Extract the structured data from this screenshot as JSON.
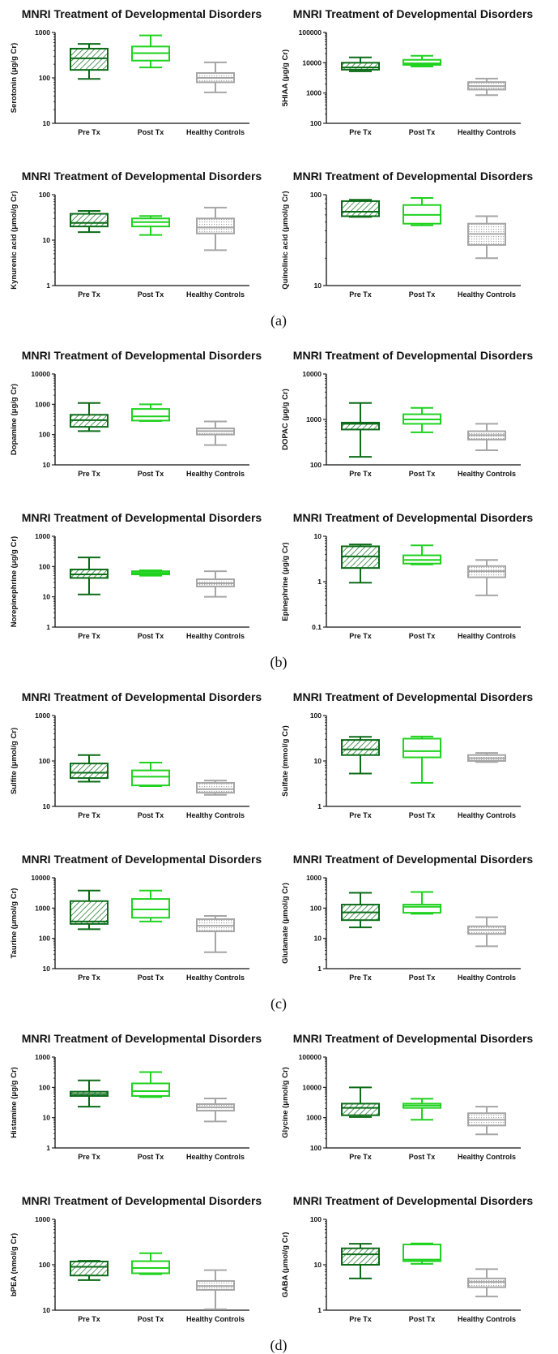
{
  "colors": {
    "pre": "#0b6b18",
    "post": "#1fd21f",
    "healthy": "#a6a6a6"
  },
  "panel_labels": [
    "(a)",
    "(b)",
    "(c)",
    "(d)"
  ],
  "chart_data": [
    {
      "type": "boxplot",
      "title": "MNRI Treatment of Developmental Disorders",
      "ylabel": "Serotonin (μg/g Cr)",
      "yscale": "log",
      "ylim": [
        10,
        1000
      ],
      "yticks": [
        "10",
        "100",
        "1000"
      ],
      "categories": [
        "Pre Tx",
        "Post Tx",
        "Healthy Controls"
      ],
      "boxes": [
        {
          "min": 95,
          "q1": 150,
          "median": 270,
          "q3": 440,
          "max": 560
        },
        {
          "min": 170,
          "q1": 240,
          "median": 350,
          "q3": 490,
          "max": 860
        },
        {
          "min": 48,
          "q1": 80,
          "median": 100,
          "q3": 128,
          "max": 220
        }
      ]
    },
    {
      "type": "boxplot",
      "title": "MNRI Treatment of Developmental Disorders",
      "ylabel": "5HIAA (μg/g Cr)",
      "yscale": "log",
      "ylim": [
        100,
        100000
      ],
      "yticks": [
        "100",
        "1000",
        "10000",
        "100000"
      ],
      "categories": [
        "Pre Tx",
        "Post Tx",
        "Healthy Controls"
      ],
      "boxes": [
        {
          "min": 5200,
          "q1": 5900,
          "median": 7000,
          "q3": 10000,
          "max": 15000
        },
        {
          "min": 7500,
          "q1": 8500,
          "median": 9500,
          "q3": 12500,
          "max": 17000
        },
        {
          "min": 850,
          "q1": 1300,
          "median": 1700,
          "q3": 2300,
          "max": 3000
        }
      ]
    },
    {
      "type": "boxplot",
      "title": "MNRI Treatment of Developmental Disorders",
      "ylabel": "Kynurenic acid (μmol/g Cr)",
      "yscale": "log",
      "ylim": [
        1,
        100
      ],
      "yticks": [
        "1",
        "10",
        "100"
      ],
      "categories": [
        "Pre Tx",
        "Post Tx",
        "Healthy Controls"
      ],
      "boxes": [
        {
          "min": 15,
          "q1": 20,
          "median": 24,
          "q3": 38,
          "max": 44
        },
        {
          "min": 13,
          "q1": 20,
          "median": 25,
          "q3": 30,
          "max": 34
        },
        {
          "min": 6,
          "q1": 14,
          "median": 19,
          "q3": 30,
          "max": 52
        }
      ]
    },
    {
      "type": "boxplot",
      "title": "MNRI Treatment of Developmental Disorders",
      "ylabel": "Quinolinic acid (μmol/g Cr)",
      "yscale": "log",
      "ylim": [
        10,
        100
      ],
      "yticks": [
        "10",
        "100"
      ],
      "categories": [
        "Pre Tx",
        "Post Tx",
        "Healthy Controls"
      ],
      "boxes": [
        {
          "min": 57,
          "q1": 58,
          "median": 65,
          "q3": 85,
          "max": 88
        },
        {
          "min": 46,
          "q1": 48,
          "median": 60,
          "q3": 77,
          "max": 92
        },
        {
          "min": 20,
          "q1": 28,
          "median": 37,
          "q3": 48,
          "max": 58
        }
      ]
    },
    {
      "type": "boxplot",
      "title": "MNRI Treatment of Developmental Disorders",
      "ylabel": "Dopamine (μg/g Cr)",
      "yscale": "log",
      "ylim": [
        10,
        10000
      ],
      "yticks": [
        "10",
        "100",
        "1000",
        "10000"
      ],
      "categories": [
        "Pre Tx",
        "Post Tx",
        "Healthy Controls"
      ],
      "boxes": [
        {
          "min": 130,
          "q1": 180,
          "median": 300,
          "q3": 450,
          "max": 1100
        },
        {
          "min": 280,
          "q1": 290,
          "median": 400,
          "q3": 700,
          "max": 1000
        },
        {
          "min": 45,
          "q1": 100,
          "median": 130,
          "q3": 160,
          "max": 270
        }
      ]
    },
    {
      "type": "boxplot",
      "title": "MNRI Treatment of Developmental Disorders",
      "ylabel": "DOPAC (μg/g Cr)",
      "yscale": "log",
      "ylim": [
        100,
        10000
      ],
      "yticks": [
        "100",
        "1000",
        "10000"
      ],
      "categories": [
        "Pre Tx",
        "Post Tx",
        "Healthy Controls"
      ],
      "boxes": [
        {
          "min": 150,
          "q1": 600,
          "median": 800,
          "q3": 850,
          "max": 2300
        },
        {
          "min": 520,
          "q1": 800,
          "median": 1000,
          "q3": 1300,
          "max": 1800
        },
        {
          "min": 210,
          "q1": 360,
          "median": 450,
          "q3": 550,
          "max": 800
        }
      ]
    },
    {
      "type": "boxplot",
      "title": "MNRI Treatment of Developmental Disorders",
      "ylabel": "Norepinephrine (μg/g Cr)",
      "yscale": "log",
      "ylim": [
        1,
        1000
      ],
      "yticks": [
        "1",
        "10",
        "100",
        "1000"
      ],
      "categories": [
        "Pre Tx",
        "Post Tx",
        "Healthy Controls"
      ],
      "boxes": [
        {
          "min": 12,
          "q1": 42,
          "median": 55,
          "q3": 80,
          "max": 200
        },
        {
          "min": 50,
          "q1": 55,
          "median": 62,
          "q3": 70,
          "max": 75
        },
        {
          "min": 10,
          "q1": 22,
          "median": 28,
          "q3": 38,
          "max": 70
        }
      ]
    },
    {
      "type": "boxplot",
      "title": "MNRI Treatment of Developmental Disorders",
      "ylabel": "Epinephrine (μg/g Cr)",
      "yscale": "log",
      "ylim": [
        0.1,
        10
      ],
      "yticks": [
        "0.1",
        "1",
        "10"
      ],
      "categories": [
        "Pre Tx",
        "Post Tx",
        "Healthy Controls"
      ],
      "boxes": [
        {
          "min": 0.95,
          "q1": 2.0,
          "median": 3.6,
          "q3": 6.0,
          "max": 6.6
        },
        {
          "min": 2.4,
          "q1": 2.5,
          "median": 3.0,
          "q3": 3.8,
          "max": 6.3
        },
        {
          "min": 0.5,
          "q1": 1.25,
          "median": 1.7,
          "q3": 2.2,
          "max": 3.0
        }
      ]
    },
    {
      "type": "boxplot",
      "title": "MNRI Treatment of Developmental Disorders",
      "ylabel": "Sulfite (μmol/g Cr)",
      "yscale": "log",
      "ylim": [
        10,
        1000
      ],
      "yticks": [
        "10",
        "100",
        "1000"
      ],
      "categories": [
        "Pre Tx",
        "Post Tx",
        "Healthy Controls"
      ],
      "boxes": [
        {
          "min": 35,
          "q1": 42,
          "median": 55,
          "q3": 88,
          "max": 135
        },
        {
          "min": 28,
          "q1": 29,
          "median": 45,
          "q3": 62,
          "max": 92
        },
        {
          "min": 18,
          "q1": 20,
          "median": 24,
          "q3": 33,
          "max": 37
        }
      ]
    },
    {
      "type": "boxplot",
      "title": "MNRI Treatment of Developmental Disorders",
      "ylabel": "Sulfate (mmol/g Cr)",
      "yscale": "log",
      "ylim": [
        1,
        100
      ],
      "yticks": [
        "1",
        "10",
        "100"
      ],
      "categories": [
        "Pre Tx",
        "Post Tx",
        "Healthy Controls"
      ],
      "boxes": [
        {
          "min": 5.3,
          "q1": 13.5,
          "median": 18,
          "q3": 29,
          "max": 34
        },
        {
          "min": 3.3,
          "q1": 12,
          "median": 16.5,
          "q3": 31,
          "max": 34.5
        },
        {
          "min": 9.5,
          "q1": 10,
          "median": 11.5,
          "q3": 13.5,
          "max": 15
        }
      ]
    },
    {
      "type": "boxplot",
      "title": "MNRI Treatment of Developmental Disorders",
      "ylabel": "Taurine (μmol/g Cr)",
      "yscale": "log",
      "ylim": [
        10,
        10000
      ],
      "yticks": [
        "10",
        "100",
        "1000",
        "10000"
      ],
      "categories": [
        "Pre Tx",
        "Post Tx",
        "Healthy Controls"
      ],
      "boxes": [
        {
          "min": 200,
          "q1": 300,
          "median": 360,
          "q3": 1700,
          "max": 3800
        },
        {
          "min": 360,
          "q1": 480,
          "median": 900,
          "q3": 2000,
          "max": 3800
        },
        {
          "min": 35,
          "q1": 170,
          "median": 260,
          "q3": 430,
          "max": 550
        }
      ]
    },
    {
      "type": "boxplot",
      "title": "MNRI Treatment of Developmental Disorders",
      "ylabel": "Glutamate (μmol/g Cr)",
      "yscale": "log",
      "ylim": [
        1,
        1000
      ],
      "yticks": [
        "1",
        "10",
        "100",
        "1000"
      ],
      "categories": [
        "Pre Tx",
        "Post Tx",
        "Healthy Controls"
      ],
      "boxes": [
        {
          "min": 23,
          "q1": 40,
          "median": 72,
          "q3": 130,
          "max": 320
        },
        {
          "min": 65,
          "q1": 70,
          "median": 110,
          "q3": 130,
          "max": 340
        },
        {
          "min": 5.5,
          "q1": 14,
          "median": 19,
          "q3": 25,
          "max": 50
        }
      ]
    },
    {
      "type": "boxplot",
      "title": "MNRI Treatment of Developmental Disorders",
      "ylabel": "Histamine (μg/g Cr)",
      "yscale": "log",
      "ylim": [
        1,
        1000
      ],
      "yticks": [
        "1",
        "10",
        "100",
        "1000"
      ],
      "categories": [
        "Pre Tx",
        "Post Tx",
        "Healthy Controls"
      ],
      "boxes": [
        {
          "min": 23,
          "q1": 52,
          "median": 60,
          "q3": 72,
          "max": 170
        },
        {
          "min": 48,
          "q1": 52,
          "median": 75,
          "q3": 135,
          "max": 320
        },
        {
          "min": 7.5,
          "q1": 17,
          "median": 22,
          "q3": 28,
          "max": 43
        }
      ]
    },
    {
      "type": "boxplot",
      "title": "MNRI Treatment of Developmental Disorders",
      "ylabel": "Glycine (μmol/g Cr)",
      "yscale": "log",
      "ylim": [
        100,
        100000
      ],
      "yticks": [
        "100",
        "1000",
        "10000",
        "100000"
      ],
      "categories": [
        "Pre Tx",
        "Post Tx",
        "Healthy Controls"
      ],
      "boxes": [
        {
          "min": 1050,
          "q1": 1200,
          "median": 2100,
          "q3": 2900,
          "max": 10000
        },
        {
          "min": 850,
          "q1": 2100,
          "median": 2500,
          "q3": 2900,
          "max": 4200
        },
        {
          "min": 280,
          "q1": 550,
          "median": 850,
          "q3": 1400,
          "max": 2300
        }
      ]
    },
    {
      "type": "boxplot",
      "title": "MNRI Treatment of Developmental Disorders",
      "ylabel": "bPEA (nmol/g Cr)",
      "yscale": "log",
      "ylim": [
        10,
        1000
      ],
      "yticks": [
        "10",
        "100",
        "1000"
      ],
      "categories": [
        "Pre Tx",
        "Post Tx",
        "Healthy Controls"
      ],
      "boxes": [
        {
          "min": 46,
          "q1": 58,
          "median": 90,
          "q3": 118,
          "max": 122
        },
        {
          "min": 62,
          "q1": 65,
          "median": 85,
          "q3": 120,
          "max": 180
        },
        {
          "min": 10.5,
          "q1": 28,
          "median": 34,
          "q3": 44,
          "max": 76
        }
      ]
    },
    {
      "type": "boxplot",
      "title": "MNRI Treatment of Developmental Disorders",
      "ylabel": "GABA (μmol/g Cr)",
      "yscale": "log",
      "ylim": [
        1,
        100
      ],
      "yticks": [
        "1",
        "10",
        "100"
      ],
      "categories": [
        "Pre Tx",
        "Post Tx",
        "Healthy Controls"
      ],
      "boxes": [
        {
          "min": 5,
          "q1": 10,
          "median": 17,
          "q3": 23,
          "max": 29
        },
        {
          "min": 10.5,
          "q1": 12,
          "median": 13,
          "q3": 28,
          "max": 29.5
        },
        {
          "min": 2,
          "q1": 3.2,
          "median": 4.2,
          "q3": 5,
          "max": 8
        }
      ]
    }
  ]
}
